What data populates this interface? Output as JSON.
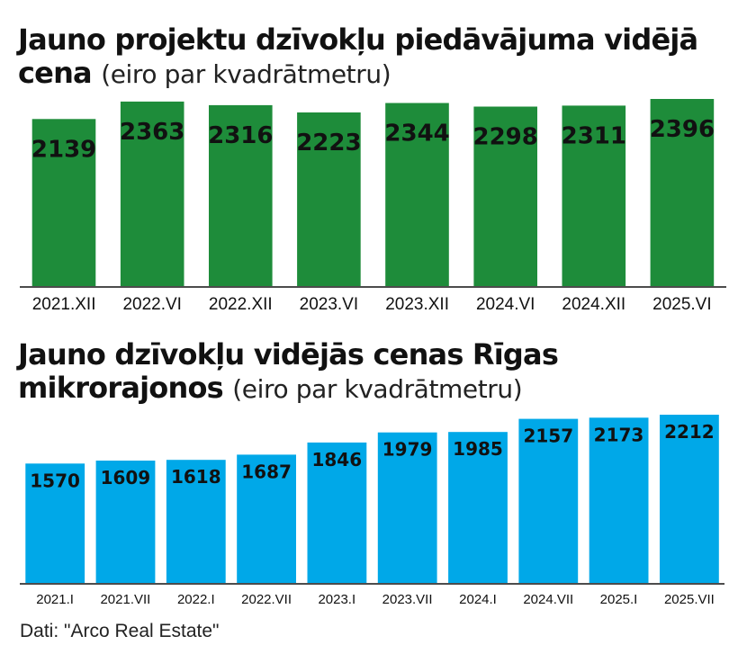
{
  "chart_data": [
    {
      "type": "bar",
      "title": "Jauno projektu dzīvokļu piedāvājuma vidējā cena",
      "subtitle": "(eiro par kvadrātmetru)",
      "categories": [
        "2021.XII",
        "2022.VI",
        "2022.XII",
        "2023.VI",
        "2023.XII",
        "2024.VI",
        "2024.XII",
        "2025.VI"
      ],
      "values": [
        2139,
        2363,
        2316,
        2223,
        2344,
        2298,
        2311,
        2396
      ],
      "color": "#1e8c3a",
      "grid": false,
      "legend": "none"
    },
    {
      "type": "bar",
      "title": "Jauno dzīvokļu vidējās cenas Rīgas mikrorajonos",
      "subtitle": "(eiro par kvadrātmetru)",
      "categories": [
        "2021.I",
        "2021.VII",
        "2022.I",
        "2022.VII",
        "2023.I",
        "2023.VII",
        "2024.I",
        "2024.VII",
        "2025.I",
        "2025.VII"
      ],
      "values": [
        1570,
        1609,
        1618,
        1687,
        1846,
        1979,
        1985,
        2157,
        2173,
        2212
      ],
      "color": "#00a8e8",
      "grid": false,
      "legend": "none"
    }
  ],
  "source": "Dati: \"Arco Real Estate\""
}
